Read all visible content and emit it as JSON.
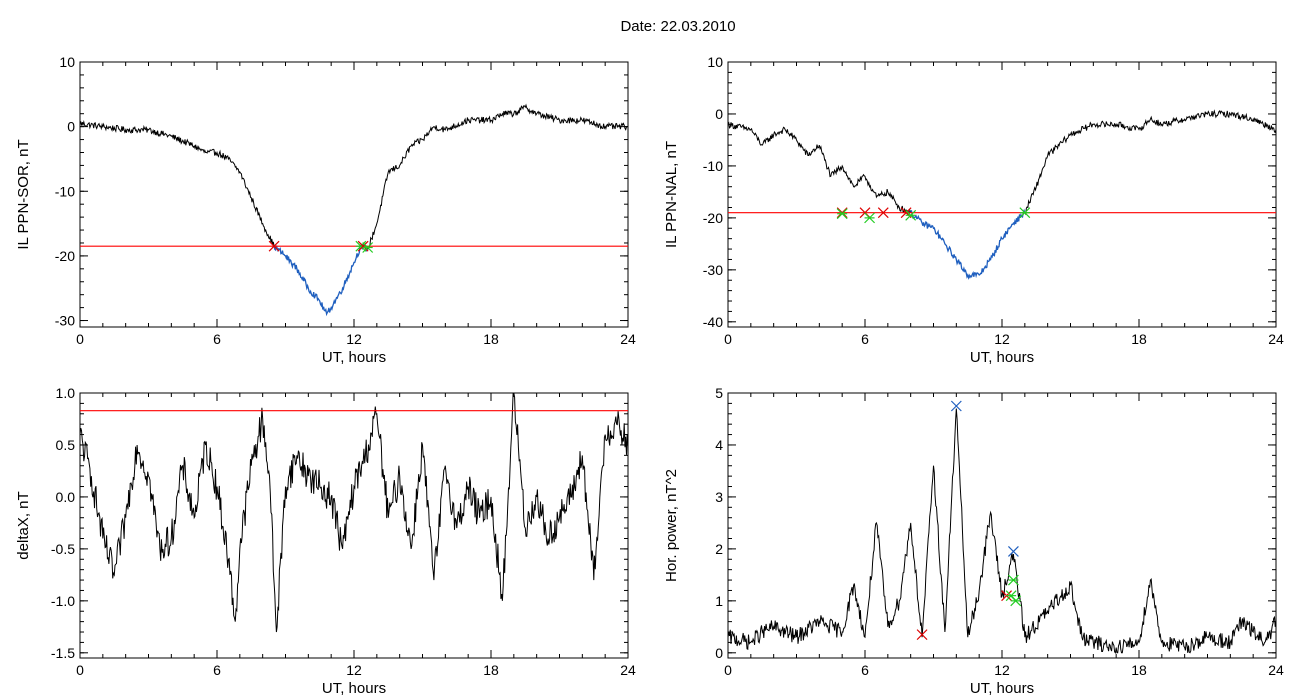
{
  "title": "Date:  22.03.2010",
  "colors": {
    "trace": "#000000",
    "threshold": "#ff0000",
    "blue": "#1f5fbf",
    "green": "#22cc22",
    "red": "#dd0000"
  },
  "chart_data": [
    {
      "type": "line",
      "ylabel": "IL PPN-SOR, nT",
      "xlabel": "UT, hours",
      "xlim": [
        0,
        24
      ],
      "ylim": [
        -31,
        10
      ],
      "xticks": [
        0,
        6,
        12,
        18,
        24
      ],
      "yticks": [
        -30,
        -20,
        -10,
        0,
        10
      ],
      "threshold": -18.5,
      "series": [
        {
          "color": "black",
          "points": [
            [
              0,
              0.5
            ],
            [
              1,
              0
            ],
            [
              2,
              -0.5
            ],
            [
              3,
              -0.5
            ],
            [
              4,
              -1.5
            ],
            [
              5,
              -3
            ],
            [
              5.5,
              -4
            ],
            [
              6,
              -4
            ],
            [
              6.5,
              -5
            ],
            [
              7,
              -7
            ],
            [
              7.5,
              -11
            ],
            [
              8,
              -15
            ],
            [
              8.5,
              -18.5
            ]
          ]
        },
        {
          "color": "blue",
          "points": [
            [
              8.5,
              -18.5
            ],
            [
              9,
              -20
            ],
            [
              9.5,
              -22
            ],
            [
              10,
              -25
            ],
            [
              10.5,
              -27
            ],
            [
              10.8,
              -29
            ],
            [
              11,
              -28
            ],
            [
              11.5,
              -25
            ],
            [
              12,
              -21
            ],
            [
              12.3,
              -18.5
            ],
            [
              12.6,
              -19
            ]
          ]
        },
        {
          "color": "black",
          "points": [
            [
              12.6,
              -19
            ],
            [
              13,
              -15
            ],
            [
              13.5,
              -7
            ],
            [
              14,
              -6
            ],
            [
              14.5,
              -3
            ],
            [
              15,
              -2
            ],
            [
              15.5,
              0
            ],
            [
              16,
              -0.5
            ],
            [
              17,
              1
            ],
            [
              18,
              1
            ],
            [
              18.5,
              2
            ],
            [
              19,
              2
            ],
            [
              19.5,
              3
            ],
            [
              20,
              2
            ],
            [
              21,
              1
            ],
            [
              22,
              1
            ],
            [
              23,
              0
            ],
            [
              24,
              0
            ]
          ]
        }
      ],
      "markers": [
        {
          "x": 8.5,
          "y": -18.5,
          "color": "red"
        },
        {
          "x": 12.3,
          "y": -18.5,
          "color": "green"
        },
        {
          "x": 12.4,
          "y": -18.5,
          "color": "red"
        },
        {
          "x": 12.6,
          "y": -18.7,
          "color": "green"
        }
      ]
    },
    {
      "type": "line",
      "ylabel": "IL PPN-NAL, nT",
      "xlabel": "UT, hours",
      "xlim": [
        0,
        24
      ],
      "ylim": [
        -41,
        10
      ],
      "xticks": [
        0,
        6,
        12,
        18,
        24
      ],
      "yticks": [
        -40,
        -30,
        -20,
        -10,
        0,
        10
      ],
      "threshold": -19,
      "series": [
        {
          "color": "black",
          "points": [
            [
              0,
              -2
            ],
            [
              1,
              -3
            ],
            [
              1.5,
              -6
            ],
            [
              2,
              -4
            ],
            [
              2.5,
              -3
            ],
            [
              3,
              -5
            ],
            [
              3.5,
              -8
            ],
            [
              4,
              -6
            ],
            [
              4.5,
              -12
            ],
            [
              5,
              -10
            ],
            [
              5.5,
              -14
            ],
            [
              6,
              -12
            ],
            [
              6.5,
              -16
            ],
            [
              7,
              -15
            ],
            [
              7.5,
              -18
            ],
            [
              8,
              -19
            ]
          ]
        },
        {
          "color": "blue",
          "points": [
            [
              8,
              -19
            ],
            [
              8.5,
              -21
            ],
            [
              9,
              -22
            ],
            [
              9.5,
              -25
            ],
            [
              10,
              -28
            ],
            [
              10.5,
              -31
            ],
            [
              11,
              -31
            ],
            [
              11.5,
              -28
            ],
            [
              12,
              -24
            ],
            [
              12.5,
              -21
            ],
            [
              13,
              -19
            ]
          ]
        },
        {
          "color": "black",
          "points": [
            [
              13,
              -19
            ],
            [
              13.5,
              -14
            ],
            [
              14,
              -8
            ],
            [
              15,
              -4
            ],
            [
              16,
              -2
            ],
            [
              17,
              -2
            ],
            [
              18,
              -3
            ],
            [
              18.5,
              -1
            ],
            [
              19,
              -2
            ],
            [
              20,
              -1
            ],
            [
              21,
              0
            ],
            [
              22,
              0
            ],
            [
              23,
              -1
            ],
            [
              24,
              -3
            ]
          ]
        }
      ],
      "markers": [
        {
          "x": 5,
          "y": -19,
          "color": "red"
        },
        {
          "x": 5,
          "y": -19.2,
          "color": "green"
        },
        {
          "x": 6,
          "y": -19,
          "color": "red"
        },
        {
          "x": 6.2,
          "y": -20,
          "color": "green"
        },
        {
          "x": 6.8,
          "y": -19,
          "color": "red"
        },
        {
          "x": 7.8,
          "y": -19,
          "color": "red"
        },
        {
          "x": 8,
          "y": -19.5,
          "color": "green"
        },
        {
          "x": 13,
          "y": -19,
          "color": "green"
        }
      ]
    },
    {
      "type": "line",
      "ylabel": "deltaX, nT",
      "xlabel": "UT, hours",
      "xlim": [
        0,
        24
      ],
      "ylim": [
        -1.55,
        1.0
      ],
      "xticks": [
        0,
        6,
        12,
        18,
        24
      ],
      "yticks": [
        -1.5,
        -1.0,
        -0.5,
        0.0,
        0.5,
        1.0
      ],
      "ytick_labels": [
        "-1.5",
        "-1.0",
        "-0.5",
        "0.0",
        "0.5",
        "1.0"
      ],
      "threshold": 0.83,
      "series": [
        {
          "color": "black",
          "points": [
            [
              0,
              0.6
            ],
            [
              0.5,
              0.2
            ],
            [
              1,
              -0.4
            ],
            [
              1.5,
              -0.75
            ],
            [
              2,
              -0.2
            ],
            [
              2.5,
              0.5
            ],
            [
              3,
              0.2
            ],
            [
              3.5,
              -0.5
            ],
            [
              4,
              -0.4
            ],
            [
              4.5,
              0.3
            ],
            [
              5,
              -0.2
            ],
            [
              5.5,
              0.5
            ],
            [
              6,
              0.1
            ],
            [
              6.5,
              -0.6
            ],
            [
              6.8,
              -1.2
            ],
            [
              7,
              -0.5
            ],
            [
              7.5,
              0.3
            ],
            [
              8,
              0.75
            ],
            [
              8.3,
              0.2
            ],
            [
              8.6,
              -1.3
            ],
            [
              9,
              0.1
            ],
            [
              9.5,
              0.4
            ],
            [
              10,
              0.2
            ],
            [
              10.5,
              0.1
            ],
            [
              11,
              0.0
            ],
            [
              11.5,
              -0.5
            ],
            [
              12,
              0.1
            ],
            [
              12.5,
              0.4
            ],
            [
              13,
              0.8
            ],
            [
              13.5,
              -0.2
            ],
            [
              14,
              0.2
            ],
            [
              14.5,
              -0.5
            ],
            [
              15,
              0.5
            ],
            [
              15.5,
              -0.8
            ],
            [
              16,
              0.3
            ],
            [
              16.5,
              -0.3
            ],
            [
              17,
              0.1
            ],
            [
              17.5,
              -0.2
            ],
            [
              18,
              0.0
            ],
            [
              18.5,
              -1.0
            ],
            [
              19,
              1.0
            ],
            [
              19.5,
              -0.3
            ],
            [
              20,
              0.0
            ],
            [
              20.5,
              -0.4
            ],
            [
              21,
              -0.2
            ],
            [
              21.5,
              0.0
            ],
            [
              22,
              0.4
            ],
            [
              22.5,
              -0.8
            ],
            [
              23,
              0.6
            ],
            [
              23.5,
              0.7
            ],
            [
              24,
              0.5
            ]
          ]
        }
      ]
    },
    {
      "type": "line",
      "ylabel": "Hor. power, nT^2",
      "xlabel": "UT, hours",
      "xlim": [
        0,
        24
      ],
      "ylim": [
        -0.1,
        5.0
      ],
      "xticks": [
        0,
        6,
        12,
        18,
        24
      ],
      "yticks": [
        0,
        1,
        2,
        3,
        4,
        5
      ],
      "series": [
        {
          "color": "black",
          "points": [
            [
              0,
              0.3
            ],
            [
              1,
              0.2
            ],
            [
              1.5,
              0.4
            ],
            [
              2,
              0.5
            ],
            [
              3,
              0.3
            ],
            [
              4,
              0.6
            ],
            [
              5,
              0.4
            ],
            [
              5.5,
              1.3
            ],
            [
              6,
              0.3
            ],
            [
              6.5,
              2.5
            ],
            [
              7,
              0.5
            ],
            [
              7.5,
              1.0
            ],
            [
              8,
              2.5
            ],
            [
              8.5,
              0.3
            ],
            [
              9,
              3.6
            ],
            [
              9.5,
              0.4
            ],
            [
              10,
              4.7
            ],
            [
              10.5,
              0.3
            ],
            [
              11,
              1.2
            ],
            [
              11.5,
              2.7
            ],
            [
              12,
              1.1
            ],
            [
              12.5,
              1.9
            ],
            [
              13,
              0.3
            ],
            [
              14,
              0.8
            ],
            [
              15,
              1.3
            ],
            [
              15.5,
              0.3
            ],
            [
              16,
              0.2
            ],
            [
              17,
              0.1
            ],
            [
              18,
              0.2
            ],
            [
              18.5,
              1.4
            ],
            [
              19,
              0.2
            ],
            [
              20,
              0.1
            ],
            [
              21,
              0.3
            ],
            [
              22,
              0.2
            ],
            [
              22.5,
              0.6
            ],
            [
              23,
              0.4
            ],
            [
              23.5,
              0.2
            ],
            [
              24,
              0.6
            ]
          ]
        }
      ],
      "markers": [
        {
          "x": 8.5,
          "y": 0.35,
          "color": "red"
        },
        {
          "x": 10,
          "y": 4.75,
          "color": "blue"
        },
        {
          "x": 12.2,
          "y": 1.1,
          "color": "red"
        },
        {
          "x": 12.4,
          "y": 1.1,
          "color": "green"
        },
        {
          "x": 12.5,
          "y": 1.95,
          "color": "blue"
        },
        {
          "x": 12.5,
          "y": 1.4,
          "color": "green"
        },
        {
          "x": 12.6,
          "y": 1.0,
          "color": "green"
        }
      ]
    }
  ]
}
